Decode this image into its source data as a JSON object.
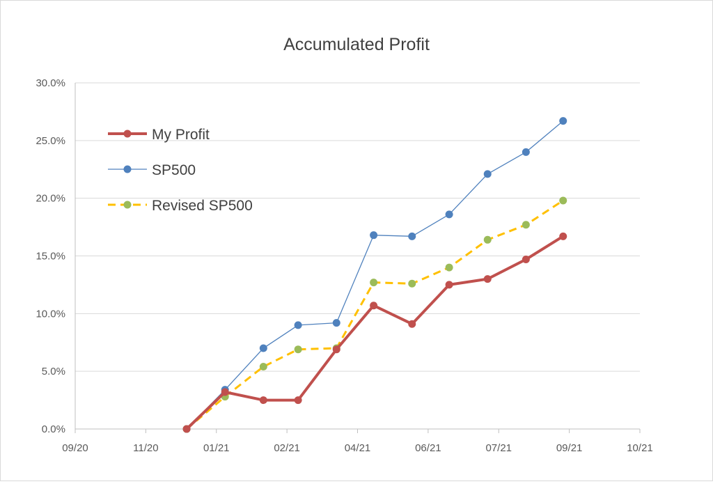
{
  "chart_data": {
    "type": "line",
    "title": "Accumulated Profit",
    "xlabel": "",
    "ylabel": "",
    "x_tick_labels": [
      "09/20",
      "11/20",
      "01/21",
      "02/21",
      "04/21",
      "06/21",
      "07/21",
      "09/21",
      "10/21"
    ],
    "x_dates": [
      "2020-11-30",
      "2020-12-31",
      "2021-01-31",
      "2021-02-28",
      "2021-03-31",
      "2021-04-30",
      "2021-05-31",
      "2021-06-30",
      "2021-07-31",
      "2021-08-31",
      "2021-09-30"
    ],
    "y_tick_labels": [
      "0.0%",
      "5.0%",
      "10.0%",
      "15.0%",
      "20.0%",
      "25.0%",
      "30.0%"
    ],
    "ylim": [
      0,
      30
    ],
    "grid": "horizontal",
    "legend_position": "top-left",
    "series": [
      {
        "name": "My Profit",
        "color": "#c0504d",
        "style": "solid-thick",
        "values": [
          0.0,
          3.2,
          2.5,
          2.5,
          6.9,
          10.7,
          9.1,
          12.5,
          13.0,
          14.7,
          16.7
        ]
      },
      {
        "name": "SP500",
        "color": "#4f81bd",
        "style": "solid-thin",
        "values": [
          0.0,
          3.4,
          7.0,
          9.0,
          9.2,
          16.8,
          16.7,
          18.6,
          22.1,
          24.0,
          26.7
        ]
      },
      {
        "name": "Revised SP500",
        "color": "#ffc000",
        "marker_color": "#9bbb59",
        "style": "dashed",
        "values": [
          0.0,
          2.8,
          5.4,
          6.9,
          7.0,
          12.7,
          12.6,
          14.0,
          16.4,
          17.7,
          19.8
        ]
      }
    ]
  }
}
